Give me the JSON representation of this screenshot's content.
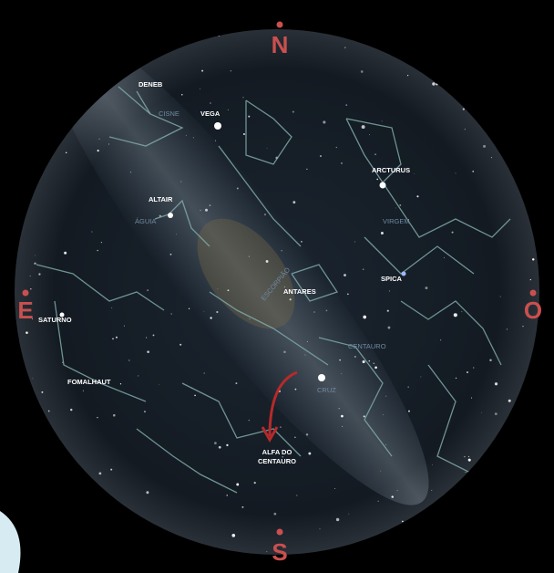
{
  "compass": {
    "north": "N",
    "south": "S",
    "east": "E",
    "west": "O"
  },
  "stars": {
    "deneb": "DENEB",
    "vega": "VEGA",
    "arcturus": "ARCTURUS",
    "altair": "ALTAIR",
    "spica": "SPICA",
    "antares": "ANTARES",
    "saturn": "SATURNO",
    "fomalhaut": "FOMALHAUT",
    "alpha_centauri": [
      "ALFA DO",
      "CENTAURO"
    ]
  },
  "constellations": {
    "cygnus": "CISNE",
    "aquila": "ÁGUIA",
    "virgo": "VIRGEM",
    "scorpius": "ESCORPIÃO",
    "centaurus": "CENTAURO",
    "crux": "CRUZ"
  }
}
